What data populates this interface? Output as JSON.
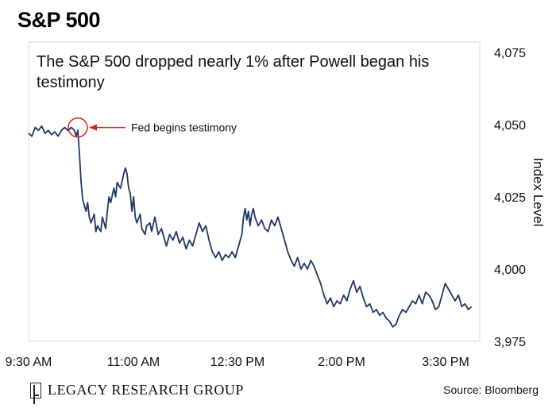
{
  "header": {
    "title": "S&P 500"
  },
  "footer": {
    "brand": "LEGACY RESEARCH GROUP",
    "source": "Source: Bloomberg"
  },
  "chart_data": {
    "type": "line",
    "title": "S&P 500",
    "subtitle": "The S&P 500 dropped nearly 1% after Powell began his testimony",
    "ylabel": "Index Level",
    "xlabel": "",
    "ylim": [
      3975,
      4075
    ],
    "yticks": [
      3975,
      4000,
      4025,
      4050,
      4075
    ],
    "ytick_labels": [
      "3,975",
      "4,000",
      "4,025",
      "4,050",
      "4,075"
    ],
    "x_range": [
      "9:30 AM",
      "4:00 PM"
    ],
    "xtick_labels": [
      "9:30 AM",
      "11:00 AM",
      "12:30 PM",
      "2:00 PM",
      "3:30 PM"
    ],
    "line_color": "#1f3864",
    "annotation": {
      "text": "Fed begins testimony",
      "time": "10:00 AM",
      "value": 4049,
      "color": "#e02020"
    },
    "series": [
      {
        "values": [
          [
            0,
            4047
          ],
          [
            2,
            4046
          ],
          [
            4,
            4049
          ],
          [
            6,
            4048
          ],
          [
            8,
            4049.5
          ],
          [
            10,
            4047
          ],
          [
            12,
            4048
          ],
          [
            14,
            4046.5
          ],
          [
            16,
            4047.5
          ],
          [
            18,
            4046
          ],
          [
            20,
            4048
          ],
          [
            22,
            4049
          ],
          [
            24,
            4048
          ],
          [
            26,
            4049
          ],
          [
            28,
            4048
          ],
          [
            29,
            4046
          ],
          [
            30,
            4048
          ],
          [
            31,
            4040
          ],
          [
            32,
            4030
          ],
          [
            33,
            4024
          ],
          [
            34,
            4022
          ],
          [
            35,
            4020
          ],
          [
            36,
            4023
          ],
          [
            37,
            4018
          ],
          [
            38,
            4016
          ],
          [
            40,
            4019
          ],
          [
            41,
            4013
          ],
          [
            42,
            4015
          ],
          [
            44,
            4013
          ],
          [
            45,
            4018
          ],
          [
            47,
            4014
          ],
          [
            48,
            4020
          ],
          [
            49,
            4025
          ],
          [
            50,
            4023
          ],
          [
            52,
            4028
          ],
          [
            53,
            4025
          ],
          [
            54,
            4030
          ],
          [
            56,
            4028
          ],
          [
            58,
            4033
          ],
          [
            59,
            4035
          ],
          [
            60,
            4033
          ],
          [
            61,
            4028
          ],
          [
            62,
            4026
          ],
          [
            63,
            4020
          ],
          [
            64,
            4025
          ],
          [
            65,
            4018
          ],
          [
            66,
            4016
          ],
          [
            68,
            4019
          ],
          [
            69,
            4014
          ],
          [
            71,
            4012
          ],
          [
            72,
            4015
          ],
          [
            74,
            4016
          ],
          [
            75,
            4013
          ],
          [
            77,
            4018
          ],
          [
            79,
            4012
          ],
          [
            81,
            4014
          ],
          [
            83,
            4010
          ],
          [
            84,
            4008
          ],
          [
            86,
            4012
          ],
          [
            88,
            4010
          ],
          [
            90,
            4013
          ],
          [
            92,
            4009
          ],
          [
            94,
            4011
          ],
          [
            96,
            4007
          ],
          [
            98,
            4010
          ],
          [
            100,
            4008
          ],
          [
            102,
            4012
          ],
          [
            104,
            4016
          ],
          [
            106,
            4013
          ],
          [
            108,
            4015
          ],
          [
            110,
            4010
          ],
          [
            112,
            4006
          ],
          [
            114,
            4004
          ],
          [
            116,
            4006
          ],
          [
            118,
            4003
          ],
          [
            120,
            4005
          ],
          [
            122,
            4004
          ],
          [
            124,
            4006
          ],
          [
            126,
            4004
          ],
          [
            128,
            4008
          ],
          [
            130,
            4012
          ],
          [
            131,
            4018
          ],
          [
            132,
            4021
          ],
          [
            133,
            4017
          ],
          [
            134,
            4020
          ],
          [
            135,
            4015
          ],
          [
            136,
            4019
          ],
          [
            137,
            4021
          ],
          [
            138,
            4018
          ],
          [
            140,
            4015
          ],
          [
            142,
            4017
          ],
          [
            144,
            4014
          ],
          [
            146,
            4013
          ],
          [
            148,
            4017
          ],
          [
            150,
            4015
          ],
          [
            152,
            4018
          ],
          [
            154,
            4014
          ],
          [
            156,
            4010
          ],
          [
            158,
            4006
          ],
          [
            160,
            4003
          ],
          [
            162,
            4001
          ],
          [
            164,
            4004
          ],
          [
            166,
            4000
          ],
          [
            168,
            4002
          ],
          [
            170,
            4000
          ],
          [
            172,
            4003
          ],
          [
            174,
            4001
          ],
          [
            176,
            3998
          ],
          [
            178,
            3995
          ],
          [
            180,
            3991
          ],
          [
            182,
            3988
          ],
          [
            184,
            3990
          ],
          [
            186,
            3987
          ],
          [
            188,
            3989
          ],
          [
            190,
            3988
          ],
          [
            192,
            3991
          ],
          [
            194,
            3989
          ],
          [
            196,
            3993
          ],
          [
            198,
            3996
          ],
          [
            200,
            3992
          ],
          [
            202,
            3994
          ],
          [
            204,
            3990
          ],
          [
            206,
            3987
          ],
          [
            208,
            3988
          ],
          [
            210,
            3985
          ],
          [
            212,
            3986
          ],
          [
            214,
            3984
          ],
          [
            216,
            3985
          ],
          [
            218,
            3983
          ],
          [
            220,
            3982
          ],
          [
            222,
            3980
          ],
          [
            224,
            3981
          ],
          [
            226,
            3984
          ],
          [
            228,
            3986
          ],
          [
            230,
            3985
          ],
          [
            232,
            3987
          ],
          [
            234,
            3989
          ],
          [
            236,
            3988
          ],
          [
            238,
            3991
          ],
          [
            240,
            3988
          ],
          [
            242,
            3992
          ],
          [
            244,
            3991
          ],
          [
            246,
            3989
          ],
          [
            248,
            3986
          ],
          [
            250,
            3987
          ],
          [
            252,
            3991
          ],
          [
            254,
            3995
          ],
          [
            256,
            3993
          ],
          [
            258,
            3991
          ],
          [
            260,
            3989
          ],
          [
            262,
            3991
          ],
          [
            264,
            3987
          ],
          [
            266,
            3988
          ],
          [
            268,
            3986
          ],
          [
            270,
            3987
          ]
        ]
      }
    ]
  }
}
